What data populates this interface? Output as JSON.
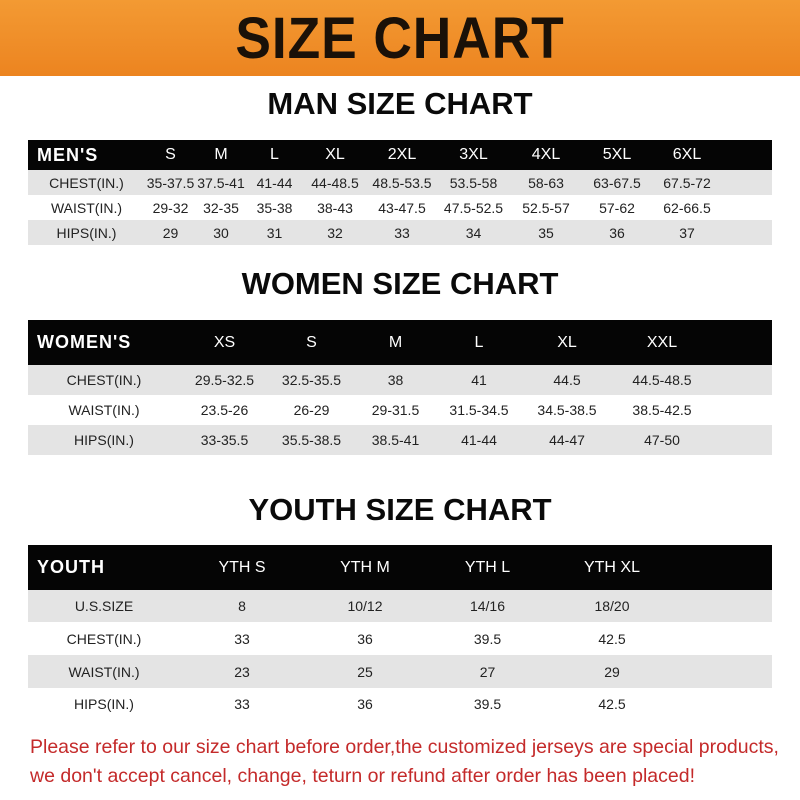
{
  "banner": {
    "title": "SIZE CHART",
    "color": "#ef8a24"
  },
  "men": {
    "title": "MAN SIZE CHART",
    "header": [
      "MEN'S",
      "S",
      "M",
      "L",
      "XL",
      "2XL",
      "3XL",
      "4XL",
      "5XL",
      "6XL"
    ],
    "rows": [
      [
        "CHEST(IN.)",
        "35-37.5",
        "37.5-41",
        "41-44",
        "44-48.5",
        "48.5-53.5",
        "53.5-58",
        "58-63",
        "63-67.5",
        "67.5-72"
      ],
      [
        "WAIST(IN.)",
        "29-32",
        "32-35",
        "35-38",
        "38-43",
        "43-47.5",
        "47.5-52.5",
        "52.5-57",
        "57-62",
        "62-66.5"
      ],
      [
        "HIPS(IN.)",
        "29",
        "30",
        "31",
        "32",
        "33",
        "34",
        "35",
        "36",
        "37"
      ]
    ]
  },
  "women": {
    "title": "WOMEN SIZE CHART",
    "header": [
      "WOMEN'S",
      "XS",
      "S",
      "M",
      "L",
      "XL",
      "XXL"
    ],
    "rows": [
      [
        "CHEST(IN.)",
        "29.5-32.5",
        "32.5-35.5",
        "38",
        "41",
        "44.5",
        "44.5-48.5"
      ],
      [
        "WAIST(IN.)",
        "23.5-26",
        "26-29",
        "29-31.5",
        "31.5-34.5",
        "34.5-38.5",
        "38.5-42.5"
      ],
      [
        "HIPS(IN.)",
        "33-35.5",
        "35.5-38.5",
        "38.5-41",
        "41-44",
        "44-47",
        "47-50"
      ]
    ]
  },
  "youth": {
    "title": "YOUTH SIZE CHART",
    "header": [
      "YOUTH",
      "YTH S",
      "YTH M",
      "YTH L",
      "YTH XL"
    ],
    "rows": [
      [
        "U.S.SIZE",
        "8",
        "10/12",
        "14/16",
        "18/20"
      ],
      [
        "CHEST(IN.)",
        "33",
        "36",
        "39.5",
        "42.5"
      ],
      [
        "WAIST(IN.)",
        "23",
        "25",
        "27",
        "29"
      ],
      [
        "HIPS(IN.)",
        "33",
        "36",
        "39.5",
        "42.5"
      ]
    ]
  },
  "note": {
    "line1": "Please refer to our size chart before order,the customized jerseys are special products,",
    "line2": "we don't accept cancel, change, teturn or refund after order has been placed!",
    "color": "#c42a2a"
  }
}
